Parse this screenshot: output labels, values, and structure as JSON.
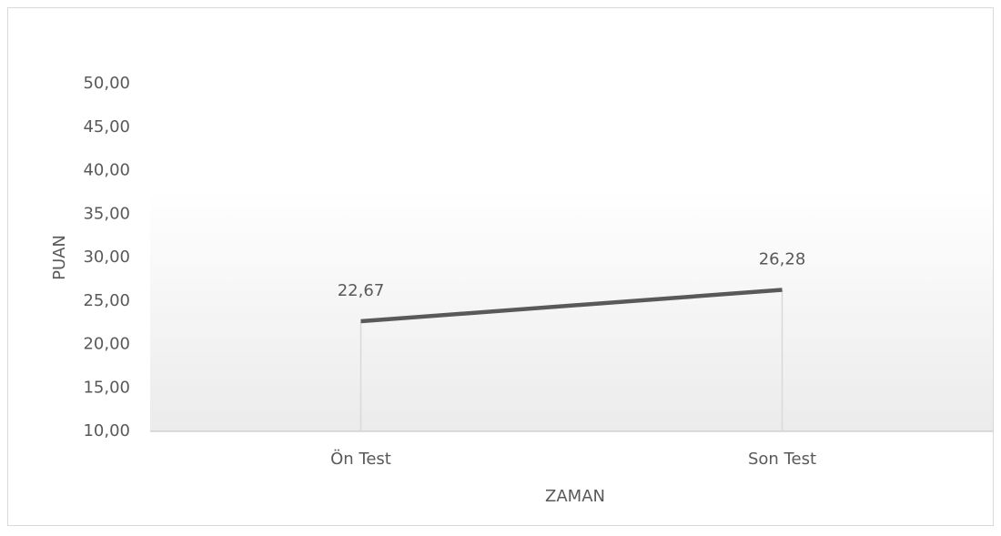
{
  "chart_data": {
    "type": "line",
    "categories": [
      "Ön Test",
      "Son Test"
    ],
    "series": [
      {
        "name": "PUAN",
        "color": "#595959",
        "values": [
          22.67,
          26.28
        ],
        "value_labels": [
          "22,67",
          "26,28"
        ]
      }
    ],
    "ylim": [
      10,
      50
    ],
    "yticks": [
      {
        "value": 10,
        "label": "10,00"
      },
      {
        "value": 15,
        "label": "15,00"
      },
      {
        "value": 20,
        "label": "20,00"
      },
      {
        "value": 25,
        "label": "25,00"
      },
      {
        "value": 30,
        "label": "30,00"
      },
      {
        "value": 35,
        "label": "35,00"
      },
      {
        "value": 40,
        "label": "40,00"
      },
      {
        "value": 45,
        "label": "45,00"
      },
      {
        "value": 50,
        "label": "50,00"
      }
    ],
    "y_label": "PUAN",
    "x_label": "ZAMAN",
    "drop_lines": true
  }
}
